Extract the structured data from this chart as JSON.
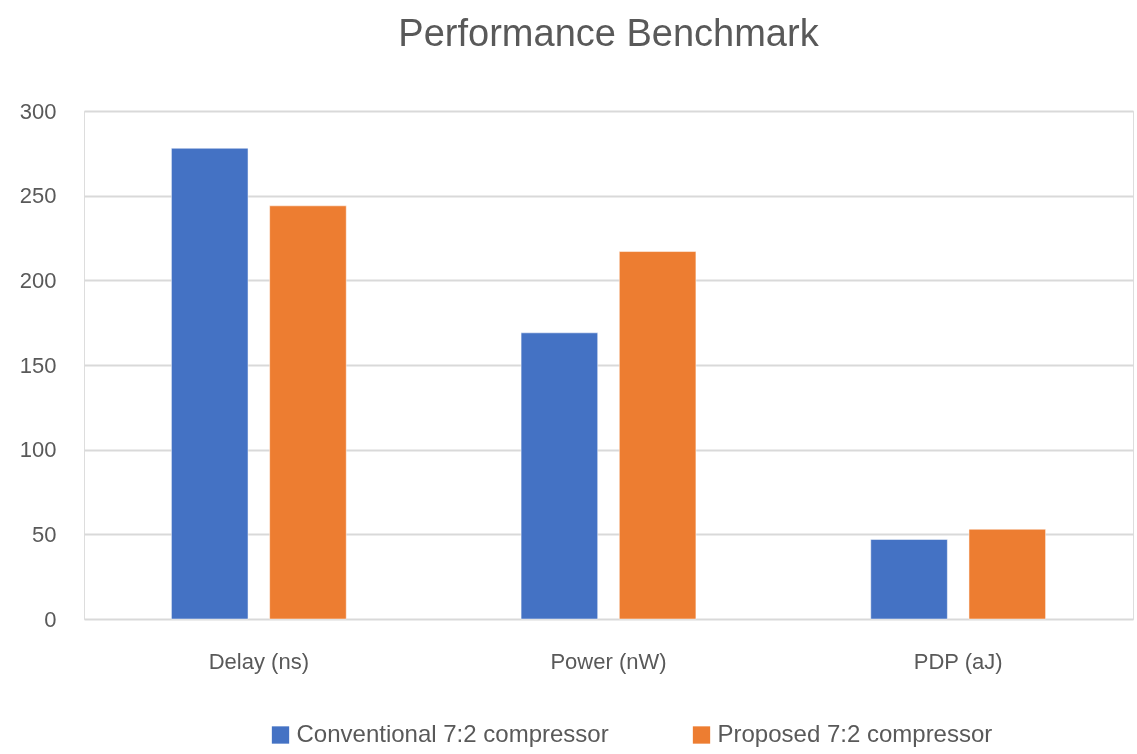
{
  "chart_data": {
    "type": "bar",
    "title": "Performance Benchmark",
    "categories": [
      "Delay (ns)",
      "Power (nW)",
      "PDP (aJ)"
    ],
    "series": [
      {
        "name": "Conventional 7:2 compressor",
        "color": "#4472c4",
        "values": [
          278,
          169,
          47
        ]
      },
      {
        "name": "Proposed 7:2 compressor",
        "color": "#ed7d31",
        "values": [
          244,
          217,
          53
        ]
      }
    ],
    "ylim": [
      0,
      300
    ],
    "yticks": [
      0,
      50,
      100,
      150,
      200,
      250,
      300
    ],
    "grid": "y",
    "legend": "bottom"
  }
}
